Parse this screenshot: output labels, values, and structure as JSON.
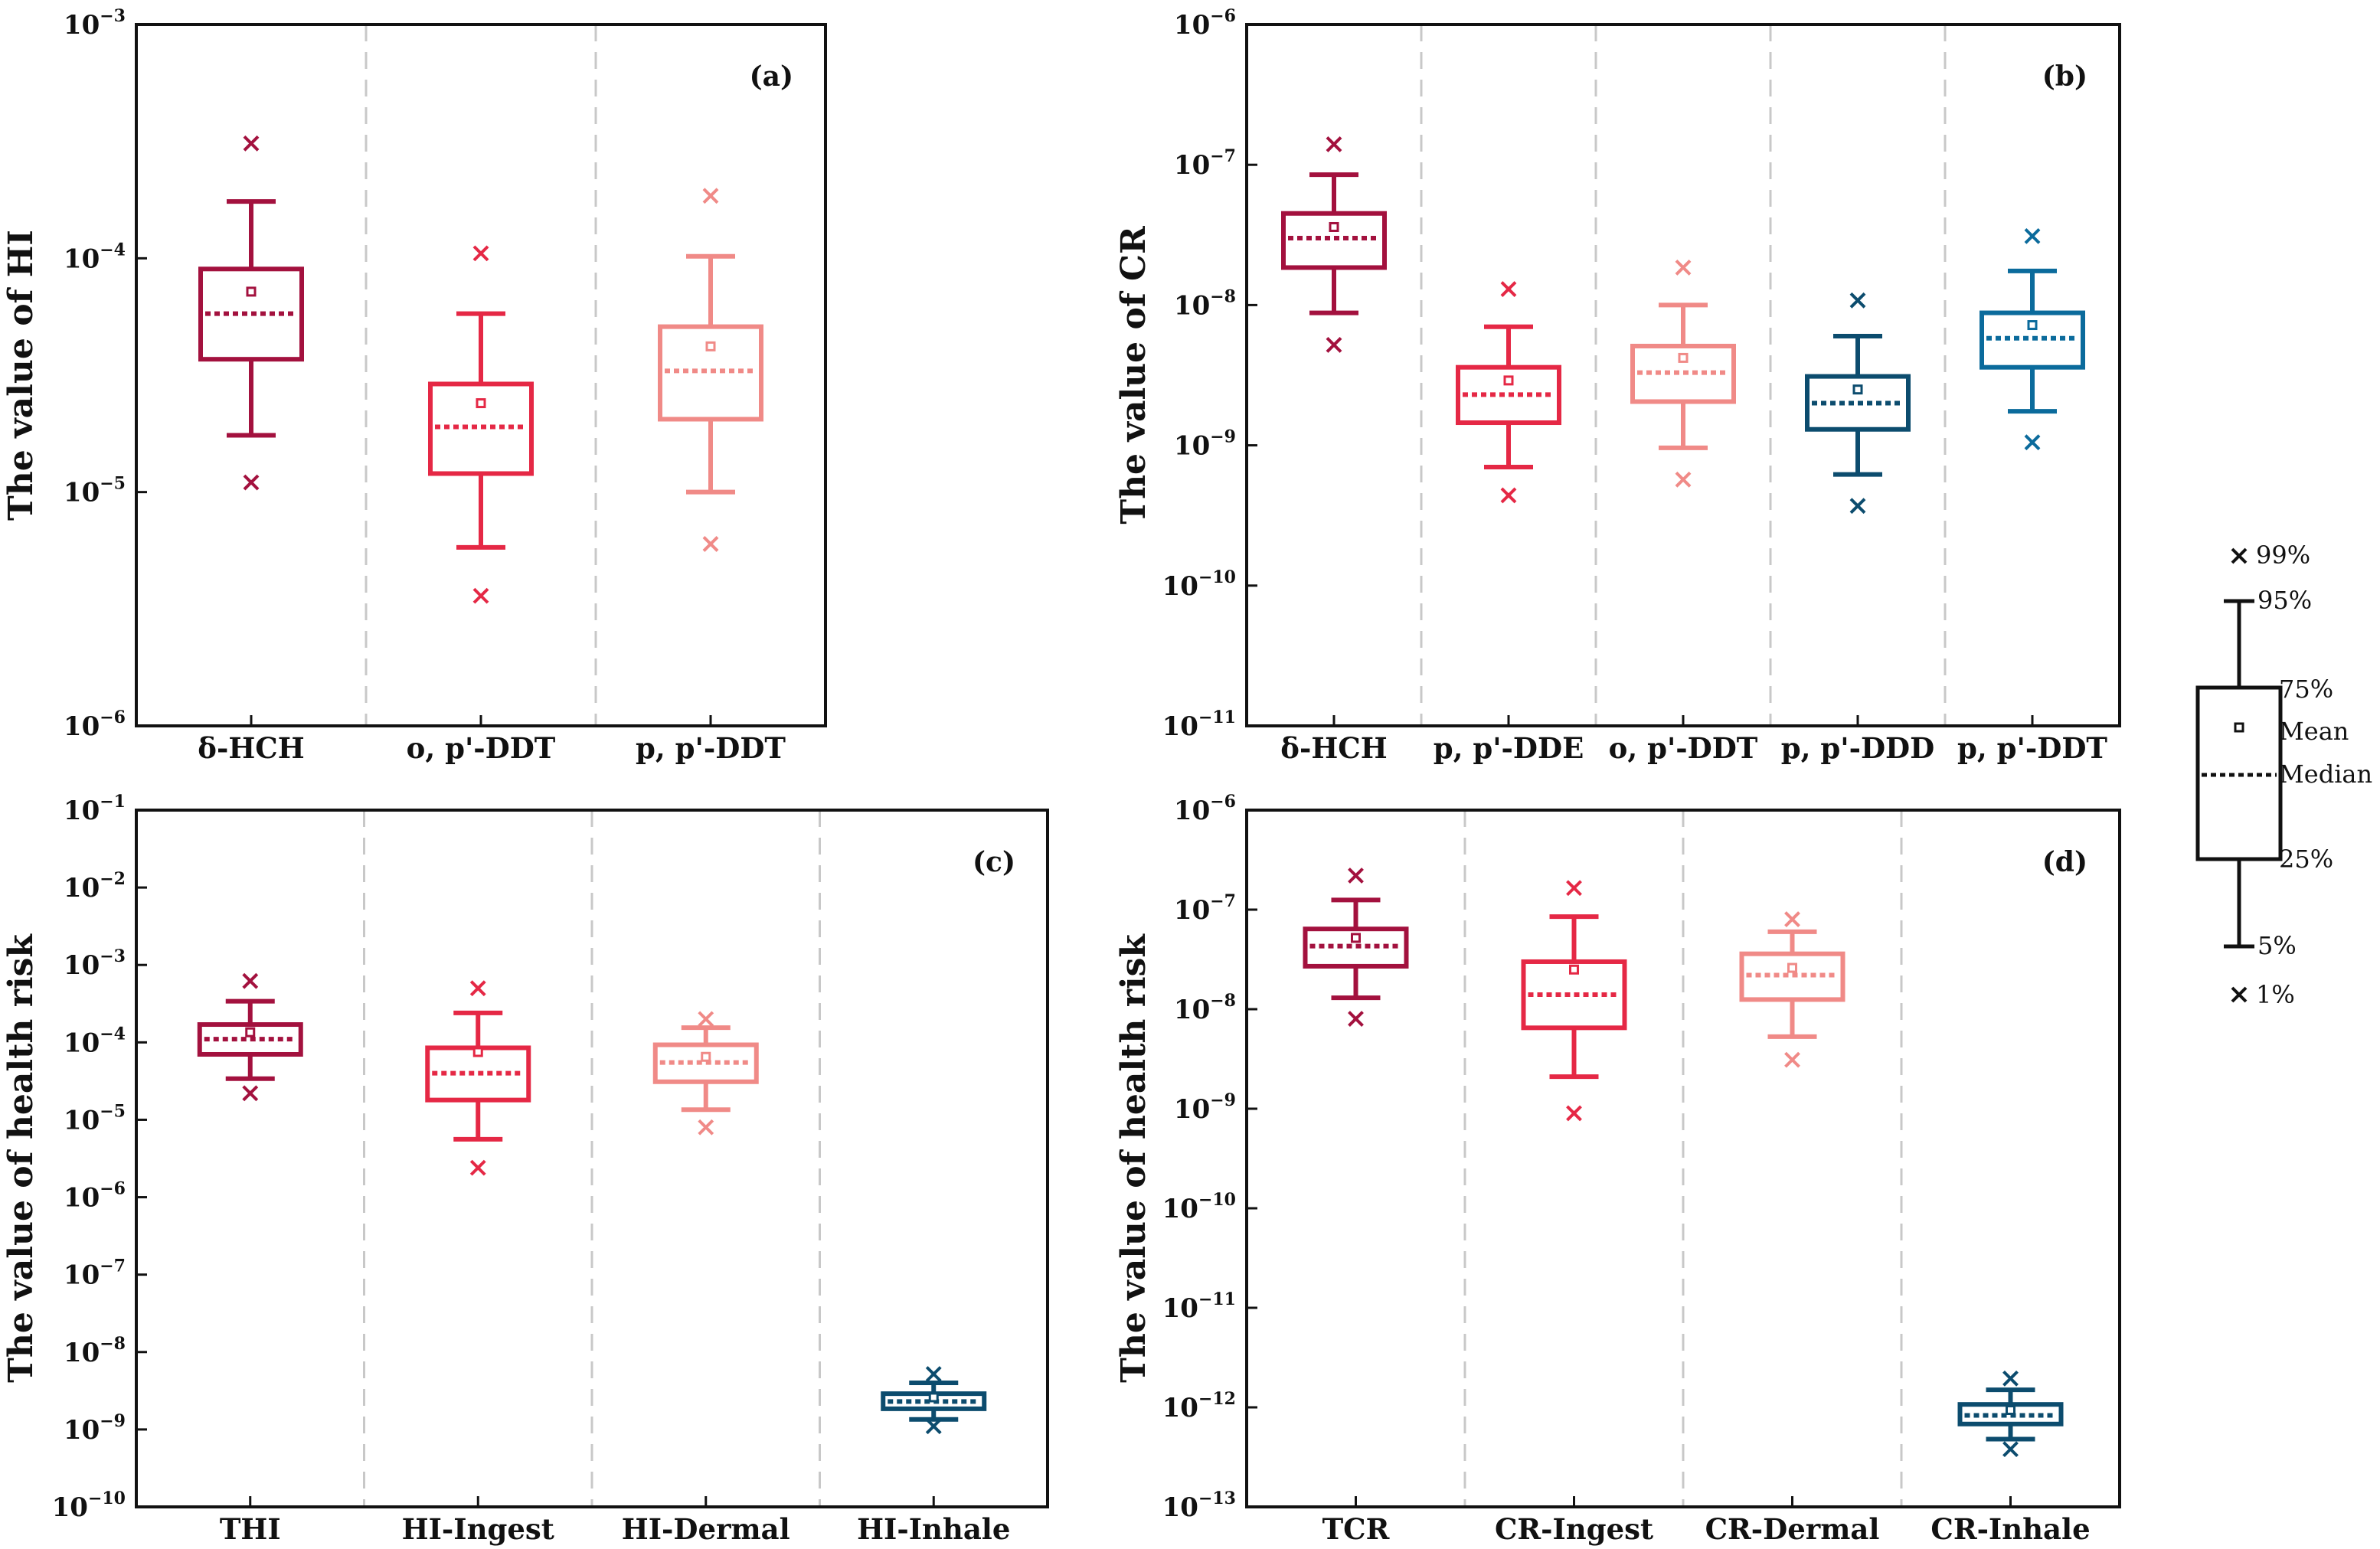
{
  "colors": {
    "dark_red": "#a3113e",
    "red": "#e52845",
    "pink": "#f08a87",
    "dark_blue": "#0c4c6e",
    "blue": "#0b6b9c",
    "divider": "#c8c8c8"
  },
  "chart_data": [
    {
      "type": "box",
      "panel_label": "(a)",
      "ylabel": "The value of HI",
      "yscale": "log",
      "ylim_exponents": [
        -6,
        -3
      ],
      "ytick_exponents": [
        -6,
        -5,
        -4,
        -3
      ],
      "categories": [
        "δ-HCH",
        "o, p'-DDT",
        "p, p'-DDT"
      ],
      "series": [
        {
          "category": "δ-HCH",
          "color": "dark_red",
          "p1": 1.1e-05,
          "p5": 1.75e-05,
          "p25": 3.7e-05,
          "median": 5.8e-05,
          "mean": 7.2e-05,
          "p75": 9e-05,
          "p95": 0.000175,
          "p99": 0.00031
        },
        {
          "category": "o, p'-DDT",
          "color": "red",
          "p1": 3.6e-06,
          "p5": 5.8e-06,
          "p25": 1.2e-05,
          "median": 1.9e-05,
          "mean": 2.4e-05,
          "p75": 2.9e-05,
          "p95": 5.8e-05,
          "p99": 0.000105
        },
        {
          "category": "p, p'-DDT",
          "color": "pink",
          "p1": 6e-06,
          "p5": 1e-05,
          "p25": 2.05e-05,
          "median": 3.3e-05,
          "mean": 4.2e-05,
          "p75": 5.1e-05,
          "p95": 0.000102,
          "p99": 0.000185
        }
      ]
    },
    {
      "type": "box",
      "panel_label": "(b)",
      "ylabel": "The value of CR",
      "yscale": "log",
      "ylim_exponents": [
        -11,
        -6
      ],
      "ytick_exponents": [
        -11,
        -10,
        -9,
        -8,
        -7,
        -6
      ],
      "categories": [
        "δ-HCH",
        "p, p'-DDE",
        "o, p'-DDT",
        "p, p'-DDD",
        "p, p'-DDT"
      ],
      "series": [
        {
          "category": "δ-HCH",
          "color": "dark_red",
          "p1": 5.2e-09,
          "p5": 8.8e-09,
          "p25": 1.85e-08,
          "median": 3e-08,
          "mean": 3.6e-08,
          "p75": 4.5e-08,
          "p95": 8.5e-08,
          "p99": 1.4e-07
        },
        {
          "category": "p, p'-DDE",
          "color": "red",
          "p1": 4.4e-10,
          "p5": 7e-10,
          "p25": 1.45e-09,
          "median": 2.3e-09,
          "mean": 2.9e-09,
          "p75": 3.6e-09,
          "p95": 7e-09,
          "p99": 1.3e-08
        },
        {
          "category": "o, p'-DDT",
          "color": "pink",
          "p1": 5.7e-10,
          "p5": 9.6e-10,
          "p25": 2.05e-09,
          "median": 3.3e-09,
          "mean": 4.2e-09,
          "p75": 5.1e-09,
          "p95": 1e-08,
          "p99": 1.85e-08
        },
        {
          "category": "p, p'-DDD",
          "color": "dark_blue",
          "p1": 3.7e-10,
          "p5": 6.2e-10,
          "p25": 1.3e-09,
          "median": 2e-09,
          "mean": 2.5e-09,
          "p75": 3.1e-09,
          "p95": 6e-09,
          "p99": 1.08e-08
        },
        {
          "category": "p, p'-DDT",
          "color": "blue",
          "p1": 1.05e-09,
          "p5": 1.75e-09,
          "p25": 3.6e-09,
          "median": 5.8e-09,
          "mean": 7.2e-09,
          "p75": 8.8e-09,
          "p95": 1.75e-08,
          "p99": 3.1e-08
        }
      ]
    },
    {
      "type": "box",
      "panel_label": "(c)",
      "ylabel": "The value of health risk",
      "yscale": "log",
      "ylim_exponents": [
        -10,
        -1
      ],
      "ytick_exponents": [
        -10,
        -9,
        -8,
        -7,
        -6,
        -5,
        -4,
        -3,
        -2,
        -1
      ],
      "categories": [
        "THI",
        "HI-Ingest",
        "HI-Dermal",
        "HI-Inhale"
      ],
      "series": [
        {
          "category": "THI",
          "color": "dark_red",
          "p1": 2.2e-05,
          "p5": 3.4e-05,
          "p25": 7e-05,
          "median": 0.00011,
          "mean": 0.000135,
          "p75": 0.00017,
          "p95": 0.00034,
          "p99": 0.00062
        },
        {
          "category": "HI-Ingest",
          "color": "red",
          "p1": 2.4e-06,
          "p5": 5.6e-06,
          "p25": 1.8e-05,
          "median": 4e-05,
          "mean": 7.5e-05,
          "p75": 8.5e-05,
          "p95": 0.00024,
          "p99": 0.0005
        },
        {
          "category": "HI-Dermal",
          "color": "pink",
          "p1": 8e-06,
          "p5": 1.35e-05,
          "p25": 3.1e-05,
          "median": 5.5e-05,
          "mean": 6.5e-05,
          "p75": 9.3e-05,
          "p95": 0.000155,
          "p99": 0.0002
        },
        {
          "category": "HI-Inhale",
          "color": "dark_blue",
          "p1": 1.1e-09,
          "p5": 1.35e-09,
          "p25": 1.85e-09,
          "median": 2.3e-09,
          "mean": 2.6e-09,
          "p75": 2.9e-09,
          "p95": 4e-09,
          "p99": 5.2e-09
        }
      ]
    },
    {
      "type": "box",
      "panel_label": "(d)",
      "ylabel": "The value of health risk",
      "yscale": "log",
      "ylim_exponents": [
        -13,
        -6
      ],
      "ytick_exponents": [
        -13,
        -12,
        -11,
        -10,
        -9,
        -8,
        -7,
        -6
      ],
      "categories": [
        "TCR",
        "CR-Ingest",
        "CR-Dermal",
        "CR-Inhale"
      ],
      "series": [
        {
          "category": "TCR",
          "color": "dark_red",
          "p1": 8e-09,
          "p5": 1.3e-08,
          "p25": 2.7e-08,
          "median": 4.3e-08,
          "mean": 5.2e-08,
          "p75": 6.4e-08,
          "p95": 1.25e-07,
          "p99": 2.2e-07
        },
        {
          "category": "CR-Ingest",
          "color": "red",
          "p1": 9e-10,
          "p5": 2.1e-09,
          "p25": 6.5e-09,
          "median": 1.4e-08,
          "mean": 2.5e-08,
          "p75": 3e-08,
          "p95": 8.5e-08,
          "p99": 1.65e-07
        },
        {
          "category": "CR-Dermal",
          "color": "pink",
          "p1": 3.1e-09,
          "p5": 5.3e-09,
          "p25": 1.25e-08,
          "median": 2.2e-08,
          "mean": 2.6e-08,
          "p75": 3.6e-08,
          "p95": 6e-08,
          "p99": 8e-08
        },
        {
          "category": "CR-Inhale",
          "color": "dark_blue",
          "p1": 3.8e-13,
          "p5": 4.8e-13,
          "p25": 6.8e-13,
          "median": 8.3e-13,
          "mean": 9.4e-13,
          "p75": 1.07e-12,
          "p95": 1.5e-12,
          "p99": 1.95e-12
        }
      ]
    }
  ],
  "legend": {
    "p99": "99%",
    "p95": "95%",
    "p75": "75%",
    "mean": "Mean",
    "median": "Median",
    "p25": "25%",
    "p5": "5%",
    "p1": "1%"
  }
}
